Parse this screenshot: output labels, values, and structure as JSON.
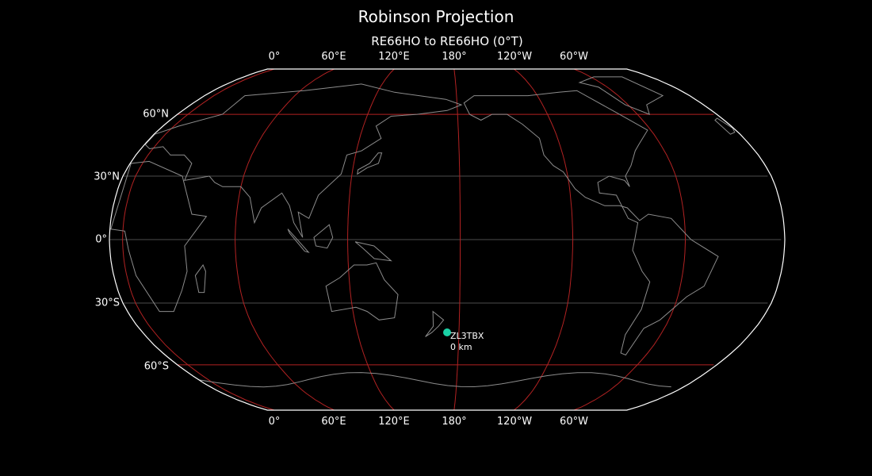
{
  "title": "Robinson Projection",
  "subtitle": "RE66HO to RE66HO (0°T)",
  "lon_ticks": [
    "0°",
    "60°E",
    "120°E",
    "180°",
    "120°W",
    "60°W"
  ],
  "lat_ticks": [
    "60°N",
    "30°N",
    "0°",
    "30°S",
    "60°S"
  ],
  "station": {
    "label": "ZL3TBX",
    "distance": "0 km"
  },
  "colors": {
    "background": "#000000",
    "coastline": "#8c8c8c",
    "graticule_red": "#b22222",
    "graticule_gray": "#666666",
    "border": "#ffffff",
    "marker": "#1ad1a5"
  }
}
